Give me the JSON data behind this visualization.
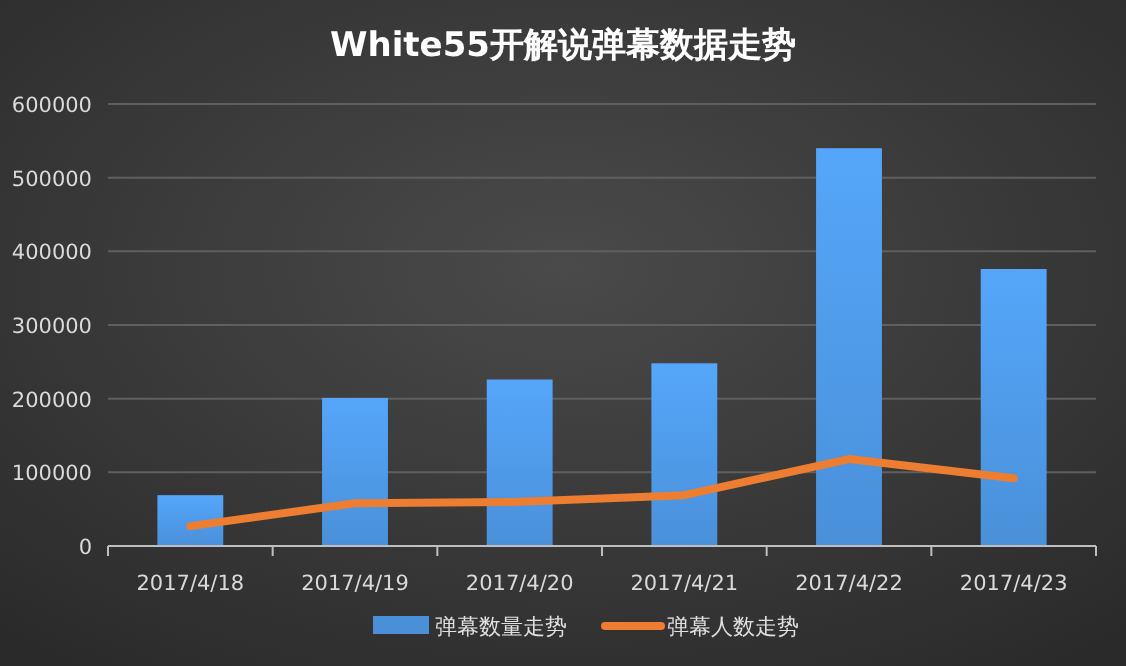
{
  "chart_data": {
    "type": "bar",
    "title": "White55开解说弹幕数据走势",
    "categories": [
      "2017/4/18",
      "2017/4/19",
      "2017/4/20",
      "2017/4/21",
      "2017/4/22",
      "2017/4/23"
    ],
    "series": [
      {
        "name": "弹幕数量走势",
        "color": "#4a90d9",
        "values": [
          69000,
          201000,
          226000,
          248000,
          540000,
          376000
        ]
      },
      {
        "name": "弹幕人数走势",
        "type": "line",
        "color": "#ed7d31",
        "values": [
          27000,
          58000,
          60000,
          69000,
          118000,
          92000
        ]
      }
    ],
    "ylim": [
      0,
      600000
    ],
    "yticks": [
      0,
      100000,
      200000,
      300000,
      400000,
      500000,
      600000
    ],
    "grid": "y",
    "legend": "bottom",
    "line_style": "solid",
    "marker": "none"
  }
}
